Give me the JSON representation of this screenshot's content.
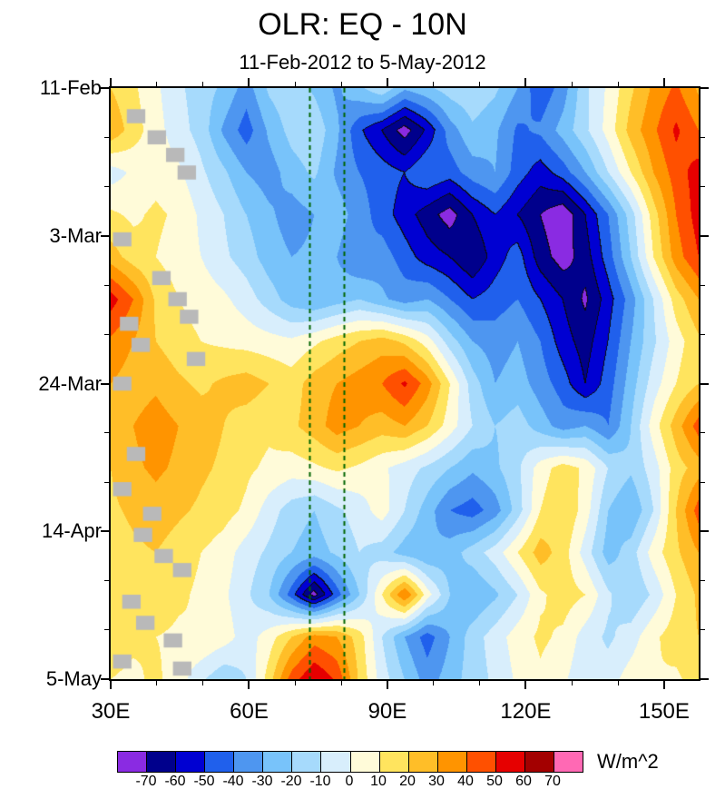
{
  "chart_data": {
    "type": "heatmap",
    "title": "OLR: EQ - 10N",
    "subtitle": "11-Feb-2012 to 5-May-2012",
    "units": "W/m^2",
    "x": {
      "min": 30,
      "max": 157.5,
      "major_ticks": [
        30,
        60,
        90,
        120,
        150
      ],
      "major_tick_labels": [
        "30E",
        "60E",
        "90E",
        "120E",
        "150E"
      ],
      "minor_tick_step": 10
    },
    "y": {
      "min_day": 0,
      "max_day": 84,
      "start_date": "11-Feb-2012",
      "end_date": "5-May-2012",
      "major_ticks": [
        0,
        21,
        42,
        63,
        84
      ],
      "major_tick_labels": [
        "11-Feb",
        "3-Mar",
        "24-Mar",
        "14-Apr",
        "5-May"
      ],
      "minor_tick_step": 7
    },
    "levels": [
      -70,
      -60,
      -50,
      -40,
      -30,
      -20,
      -10,
      0,
      10,
      20,
      30,
      40,
      50,
      60,
      70
    ],
    "palette": [
      "#8A2BE2",
      "#00008C",
      "#0000D2",
      "#2060EC",
      "#4E96F0",
      "#78C3FA",
      "#A6DAFC",
      "#D8EEFC",
      "#FFFBD9",
      "#FFE45E",
      "#FFBE28",
      "#FF9400",
      "#FF5000",
      "#E60000",
      "#A30000",
      "#FF69B4"
    ],
    "missing_color": "#B9B9B9",
    "reference_lines": {
      "longitudes": [
        73,
        80.5
      ],
      "color": "#006400",
      "dash": [
        5,
        4
      ],
      "width": 2
    },
    "grid": {
      "lons": [
        30,
        34.9,
        39.8,
        44.7,
        49.6,
        54.5,
        59.4,
        64.3,
        69.2,
        74.1,
        79.0,
        83.9,
        88.8,
        93.8,
        98.7,
        103.6,
        108.5,
        113.4,
        118.3,
        123.2,
        128.1,
        133.0,
        137.9,
        142.8,
        147.7,
        152.6,
        157.5
      ],
      "days": [
        0,
        6,
        12,
        18,
        24,
        30,
        36,
        42,
        48,
        54,
        60,
        66,
        72,
        78,
        84
      ],
      "values": [
        [
          20,
          12,
          2,
          -8,
          -15,
          -22,
          -35,
          -18,
          -12,
          -22,
          -32,
          -22,
          -12,
          -28,
          -22,
          -15,
          -12,
          -18,
          -30,
          -48,
          -35,
          -12,
          2,
          18,
          32,
          42,
          28
        ],
        [
          28,
          15,
          4,
          -6,
          -14,
          -32,
          -45,
          -28,
          -16,
          -12,
          -28,
          -48,
          -60,
          -75,
          -58,
          -35,
          -22,
          -28,
          -42,
          -38,
          -26,
          -12,
          4,
          24,
          38,
          52,
          40
        ],
        [
          -5,
          2,
          6,
          2,
          -8,
          -18,
          -30,
          -35,
          -25,
          -18,
          -32,
          -40,
          -45,
          -50,
          -40,
          -45,
          -35,
          -30,
          -45,
          -55,
          -45,
          -30,
          -10,
          10,
          30,
          45,
          55
        ],
        [
          12,
          8,
          12,
          8,
          -2,
          -10,
          -20,
          -28,
          -35,
          -30,
          -25,
          -35,
          -45,
          -55,
          -65,
          -75,
          -60,
          -50,
          -60,
          -70,
          -78,
          -60,
          -40,
          -15,
          15,
          40,
          55
        ],
        [
          25,
          15,
          10,
          5,
          0,
          -8,
          -15,
          -25,
          -30,
          -28,
          -30,
          -40,
          -35,
          -45,
          -55,
          -60,
          -70,
          -55,
          -45,
          -65,
          -75,
          -65,
          -45,
          -20,
          10,
          35,
          50
        ],
        [
          55,
          40,
          18,
          10,
          6,
          2,
          -5,
          -15,
          -25,
          -30,
          -25,
          -20,
          -28,
          -35,
          -30,
          -40,
          -50,
          -45,
          -40,
          -50,
          -60,
          -72,
          -55,
          -35,
          -10,
          15,
          30
        ],
        [
          38,
          30,
          20,
          14,
          10,
          8,
          6,
          4,
          2,
          8,
          15,
          20,
          25,
          18,
          5,
          -15,
          -30,
          -35,
          -30,
          -40,
          -55,
          -65,
          -50,
          -30,
          -12,
          5,
          18
        ],
        [
          30,
          25,
          28,
          22,
          18,
          22,
          25,
          20,
          15,
          25,
          30,
          35,
          40,
          52,
          35,
          10,
          -15,
          -30,
          -25,
          -35,
          -45,
          -60,
          -45,
          -25,
          -5,
          10,
          20
        ],
        [
          25,
          30,
          35,
          30,
          25,
          20,
          15,
          12,
          18,
          25,
          35,
          30,
          25,
          30,
          20,
          5,
          -10,
          -20,
          -15,
          -25,
          -35,
          -30,
          -40,
          -20,
          5,
          25,
          45
        ],
        [
          20,
          28,
          32,
          28,
          22,
          18,
          12,
          8,
          5,
          8,
          12,
          8,
          2,
          -5,
          -12,
          -20,
          -28,
          -22,
          -12,
          5,
          15,
          8,
          -10,
          -18,
          -5,
          15,
          25
        ],
        [
          18,
          22,
          26,
          22,
          18,
          14,
          8,
          -5,
          -15,
          -20,
          -12,
          -5,
          5,
          -10,
          -25,
          -40,
          -45,
          -35,
          -15,
          10,
          20,
          5,
          -20,
          -30,
          -10,
          20,
          45
        ],
        [
          15,
          18,
          20,
          15,
          10,
          5,
          -5,
          -12,
          -20,
          -25,
          -18,
          -10,
          -15,
          -25,
          -30,
          -25,
          -15,
          -5,
          10,
          25,
          15,
          -5,
          -25,
          -15,
          5,
          18,
          30
        ],
        [
          12,
          15,
          18,
          12,
          8,
          2,
          -8,
          -20,
          -45,
          -75,
          -45,
          -20,
          10,
          40,
          5,
          -20,
          -30,
          -22,
          -10,
          8,
          15,
          10,
          -8,
          -20,
          -8,
          10,
          22
        ],
        [
          15,
          12,
          10,
          8,
          10,
          5,
          -5,
          5,
          20,
          35,
          30,
          15,
          -10,
          -30,
          -45,
          -30,
          -15,
          -5,
          5,
          12,
          8,
          -5,
          -12,
          -5,
          8,
          15,
          20
        ],
        [
          10,
          8,
          12,
          5,
          -8,
          -18,
          -10,
          15,
          45,
          60,
          48,
          18,
          -5,
          -20,
          -35,
          -25,
          -15,
          -8,
          2,
          8,
          2,
          -8,
          -5,
          5,
          10,
          8,
          15
        ]
      ]
    },
    "block_size": {
      "dlon": 4,
      "ddays": 2
    },
    "missing_blocks": [
      {
        "lon": 33.5,
        "day": 3
      },
      {
        "lon": 38,
        "day": 6
      },
      {
        "lon": 42,
        "day": 8.5
      },
      {
        "lon": 44.5,
        "day": 11
      },
      {
        "lon": 30.5,
        "day": 20.5
      },
      {
        "lon": 39,
        "day": 26
      },
      {
        "lon": 42.5,
        "day": 29
      },
      {
        "lon": 45,
        "day": 31.5
      },
      {
        "lon": 32,
        "day": 32.5
      },
      {
        "lon": 34.5,
        "day": 35.5
      },
      {
        "lon": 46.5,
        "day": 37.5
      },
      {
        "lon": 30.5,
        "day": 41
      },
      {
        "lon": 33.5,
        "day": 51
      },
      {
        "lon": 30.5,
        "day": 56
      },
      {
        "lon": 37,
        "day": 59.5
      },
      {
        "lon": 35,
        "day": 62.5
      },
      {
        "lon": 39.5,
        "day": 65.5
      },
      {
        "lon": 43.5,
        "day": 67.5
      },
      {
        "lon": 32.5,
        "day": 72
      },
      {
        "lon": 35.5,
        "day": 75
      },
      {
        "lon": 41.5,
        "day": 77.5
      },
      {
        "lon": 30.5,
        "day": 80.5
      },
      {
        "lon": 43.5,
        "day": 81.5
      }
    ]
  }
}
